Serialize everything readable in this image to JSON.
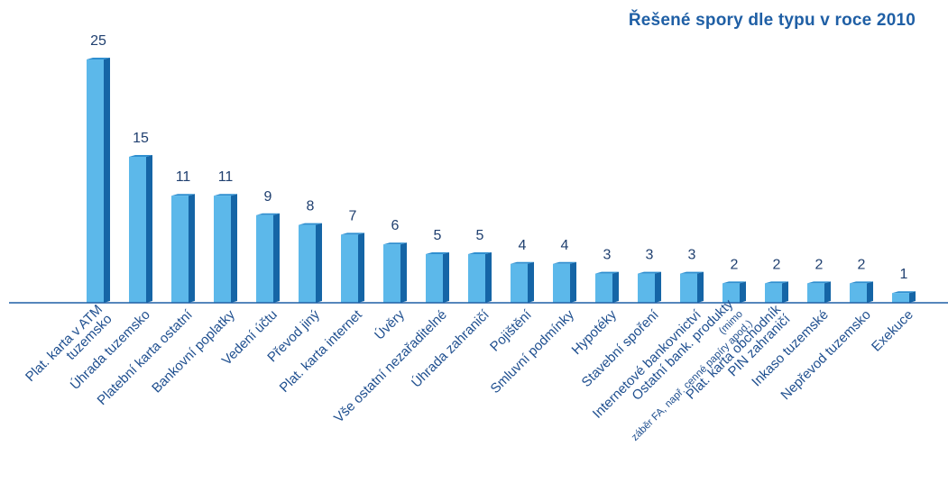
{
  "chart_data": {
    "type": "bar",
    "title": "Řešené spory dle typu v roce 2010",
    "xlabel": "",
    "ylabel": "",
    "ylim": [
      0,
      25
    ],
    "grid": false,
    "categories": [
      "Plat. karta v ATM tuzemsko",
      "Úhrada tuzemsko",
      "Platební karta ostatní",
      "Bankovní poplatky",
      "Vedení účtu",
      "Převod jiný",
      "Plat. karta internet",
      "Úvěry",
      "Vše ostatní nezařaditelné",
      "Úhrada zahraničí",
      "Pojištění",
      "Smluvní podmínky",
      "Hypotéky",
      "Stavební spoření",
      "Internetové bankovnictví",
      "Ostatní bank. produkty (mimo záběr FA, např. cenné papíry apod.)",
      "Plat. karta obchodník PIN zahraničí",
      "Inkaso tuzemské",
      "Nepřevod tuzemsko",
      "Exekuce"
    ],
    "label_lines": [
      [
        "Plat. karta v ATM",
        "tuzemsko"
      ],
      [
        "Úhrada tuzemsko"
      ],
      [
        "Platební karta ostatní"
      ],
      [
        "Bankovní poplatky"
      ],
      [
        "Vedení účtu"
      ],
      [
        "Převod jiný"
      ],
      [
        "Plat. karta internet"
      ],
      [
        "Úvěry"
      ],
      [
        "Vše ostatní nezařaditelné"
      ],
      [
        "Úhrada zahraničí"
      ],
      [
        "Pojištění"
      ],
      [
        "Smluvní podmínky"
      ],
      [
        "Hypotéky"
      ],
      [
        "Stavební spoření"
      ],
      [
        "Internetové bankovnictví"
      ],
      [
        "Ostatní bank. produkty",
        "(mimo",
        "záběr FA, např. cenné papíry apod.)"
      ],
      [
        "Plat. karta obchodník",
        "PIN zahraničí"
      ],
      [
        "Inkaso tuzemské"
      ],
      [
        "Nepřevod tuzemsko"
      ],
      [
        "Exekuce"
      ]
    ],
    "values": [
      25,
      15,
      11,
      11,
      9,
      8,
      7,
      6,
      5,
      5,
      4,
      4,
      3,
      3,
      3,
      2,
      2,
      2,
      2,
      1
    ],
    "colors": {
      "bar_front": "#5cb8ea",
      "bar_side": "#1565a6",
      "bar_top": "#2f8fd0",
      "axis": "#1f5fa5",
      "title": "#1f5fa5"
    }
  }
}
